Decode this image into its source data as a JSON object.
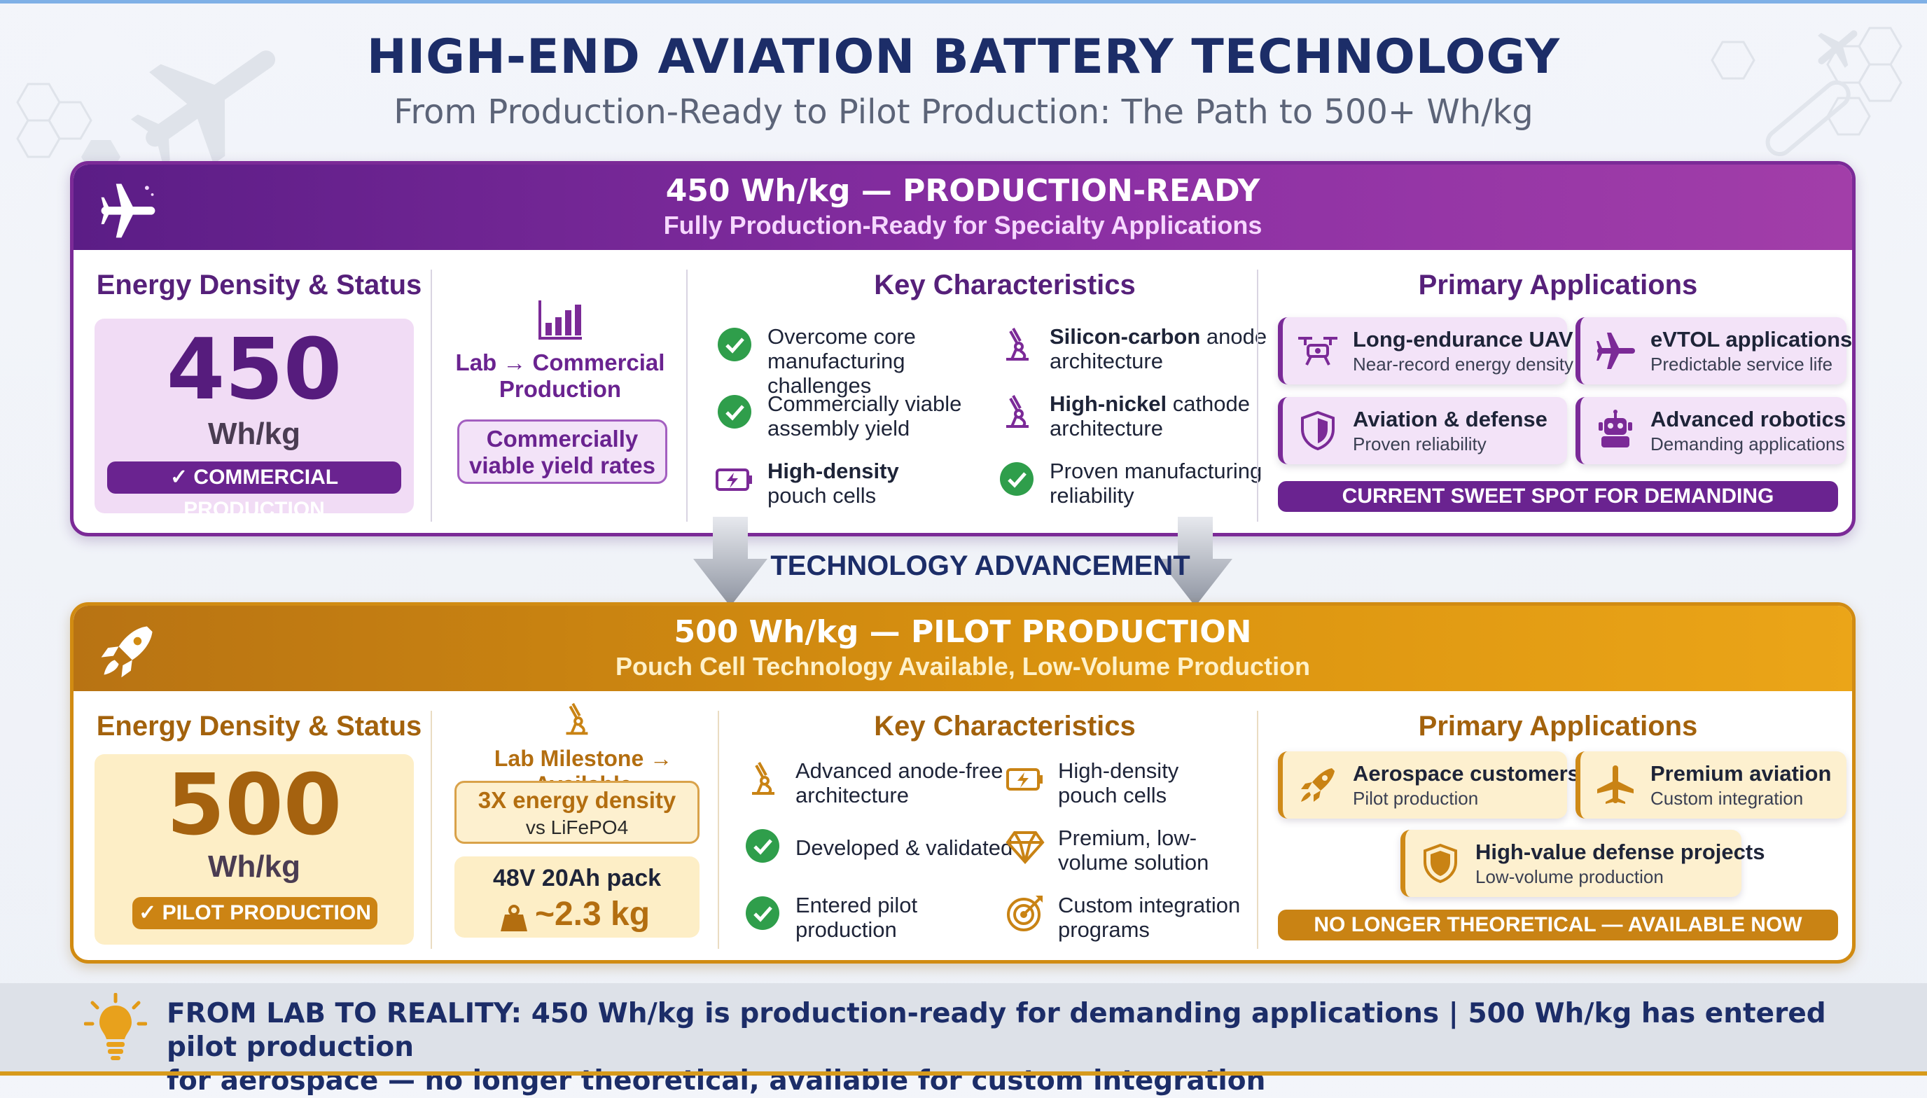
{
  "header": {
    "title": "HIGH-END AVIATION BATTERY TECHNOLOGY",
    "subtitle": "From Production-Ready to Pilot Production: The Path to 500+ Wh/kg"
  },
  "tier450": {
    "title": "450 Wh/kg — PRODUCTION-READY",
    "subtitle": "Fully Production-Ready for Specialty Applications",
    "energy_title": "Energy Density & Status",
    "number": "450",
    "unit": "Wh/kg",
    "status": "✓ COMMERCIAL PRODUCTION",
    "transition_line1": "Lab → Commercial",
    "transition_line2": "Production",
    "yield_line1": "Commercially",
    "yield_line2": "viable yield rates",
    "char_title": "Key Characteristics",
    "characteristics": [
      {
        "line1": "Overcome core",
        "line2": "manufacturing challenges"
      },
      {
        "bold": "Silicon-carbon",
        "line1": " anode",
        "line2": "architecture"
      },
      {
        "line1": "Commercially viable",
        "line2": "assembly yield"
      },
      {
        "bold": "High-nickel",
        "line1": " cathode",
        "line2": "architecture"
      },
      {
        "bold": "High-density",
        "line1": "",
        "line2": "pouch cells"
      },
      {
        "line1": "Proven manufacturing",
        "line2": "reliability"
      }
    ],
    "apps_title": "Primary Applications",
    "apps": [
      {
        "title": "Long-endurance UAV",
        "sub": "Near-record energy density"
      },
      {
        "title": "eVTOL applications",
        "sub": "Predictable service life"
      },
      {
        "title": "Aviation & defense",
        "sub": "Proven reliability"
      },
      {
        "title": "Advanced robotics",
        "sub": "Demanding applications"
      }
    ],
    "banner": "CURRENT SWEET SPOT FOR DEMANDING APPLICATIONS"
  },
  "advancement_label": "TECHNOLOGY ADVANCEMENT",
  "tier500": {
    "title": "500 Wh/kg — PILOT PRODUCTION",
    "subtitle": "Pouch Cell Technology Available, Low-Volume Production",
    "energy_title": "Energy Density & Status",
    "number": "500",
    "unit": "Wh/kg",
    "status": "✓ PILOT PRODUCTION",
    "milestone": "Lab Milestone → Available",
    "density_line1": "3X energy density",
    "density_line2": "vs LiFePO4",
    "pack_line1": "48V 20Ah pack",
    "pack_line2": "~2.3 kg",
    "char_title": "Key Characteristics",
    "characteristics": [
      {
        "line1": "Advanced anode-free",
        "line2": "architecture"
      },
      {
        "line1": "High-density",
        "line2": "pouch cells"
      },
      {
        "line1": "Developed & validated",
        "line2": ""
      },
      {
        "line1": "Premium, low-",
        "line2": "volume solution"
      },
      {
        "line1": "Entered pilot",
        "line2": "production"
      },
      {
        "line1": "Custom integration",
        "line2": "programs"
      }
    ],
    "apps_title": "Primary Applications",
    "apps": [
      {
        "title": "Aerospace customers",
        "sub": "Pilot production"
      },
      {
        "title": "Premium aviation",
        "sub": "Custom integration"
      },
      {
        "title": "High-value defense projects",
        "sub": "Low-volume production"
      }
    ],
    "banner": "NO LONGER THEORETICAL — AVAILABLE NOW"
  },
  "footer": {
    "line1": "FROM LAB TO REALITY: 450 Wh/kg is production-ready for demanding applications | 500 Wh/kg has entered pilot production",
    "line2": "for aerospace — no longer theoretical, available for custom integration"
  },
  "colors": {
    "purple": "#7b2a97",
    "gold": "#d18b12",
    "navy": "#1c2d68",
    "check_green": "#2f9e4b"
  }
}
